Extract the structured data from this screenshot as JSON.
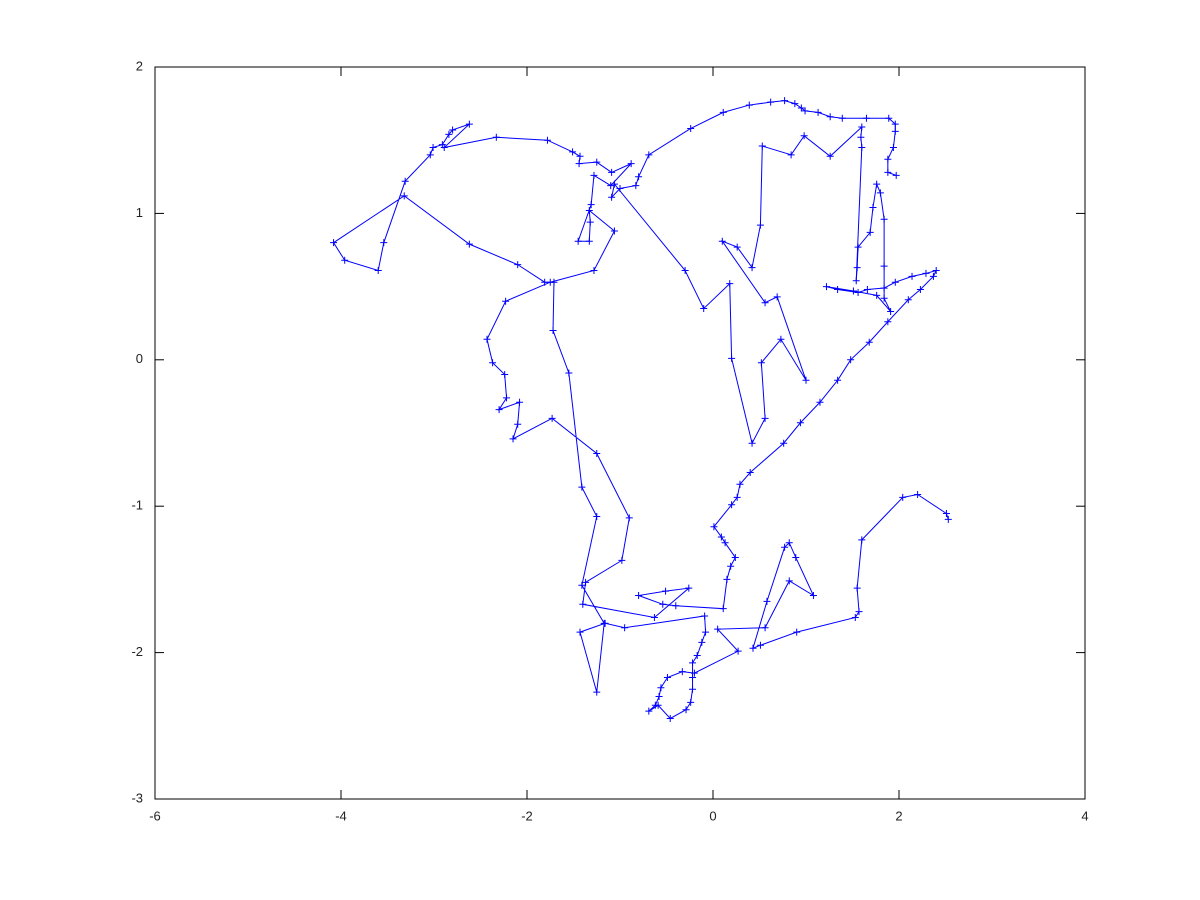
{
  "chart_data": {
    "type": "line",
    "marker": "+",
    "color": "#0000ff",
    "xlim": [
      -6,
      4
    ],
    "ylim": [
      -3,
      2
    ],
    "xticks": [
      -6,
      -4,
      -2,
      0,
      2,
      4
    ],
    "yticks": [
      -3,
      -2,
      -1,
      0,
      1,
      2
    ],
    "x": [
      2.53,
      2.51,
      2.2,
      2.04,
      1.6,
      1.55,
      1.57,
      1.53,
      0.9,
      0.51,
      0.43,
      0.58,
      0.77,
      0.82,
      0.89,
      1.08,
      0.82,
      0.56,
      0.05,
      0.27,
      -0.2,
      -0.33,
      -0.49,
      -0.56,
      -0.58,
      -0.62,
      -0.69,
      -0.59,
      -0.46,
      -0.29,
      -0.24,
      -0.22,
      -0.22,
      -0.22,
      -0.17,
      -0.12,
      -0.08,
      -0.09,
      -0.95,
      -1.16,
      -1.43,
      -1.25,
      -1.17,
      -1.41,
      -1.25,
      -1.41,
      -1.55,
      -1.72,
      -1.71,
      -1.81,
      -2.1,
      -2.62,
      -3.32,
      -4.08,
      -3.96,
      -3.6,
      -3.54,
      -3.31,
      -3.04,
      -3.01,
      -2.91,
      -2.84,
      -2.8,
      -2.62,
      -2.89,
      -2.33,
      -1.78,
      -1.51,
      -1.43,
      -1.44,
      -1.25,
      -1.09,
      -0.88,
      -1.1,
      -1.28,
      -1.31,
      -1.45,
      -1.33,
      -1.32,
      -1.33,
      -1.06,
      -1.28,
      -1.75,
      -2.23,
      -2.43,
      -2.37,
      -2.24,
      -2.22,
      -2.3,
      -2.08,
      -2.1,
      -2.15,
      -1.73,
      -1.25,
      -0.9,
      -0.98,
      -1.37,
      -1.4,
      -0.63,
      -0.26,
      -0.51,
      -0.8,
      -0.54,
      -0.4,
      0.11,
      0.15,
      0.19,
      0.24,
      0.13,
      0.09,
      0.01,
      0.2,
      0.26,
      0.29,
      0.4,
      0.76,
      0.94,
      1.15,
      1.34,
      1.48,
      1.68,
      1.88,
      2.1,
      2.23,
      2.37,
      2.4,
      2.29,
      2.14,
      1.96,
      1.84,
      1.66,
      1.56,
      1.34,
      1.22,
      1.51,
      1.76,
      1.91,
      1.84,
      1.84,
      1.84,
      1.8,
      1.76,
      1.72,
      1.69,
      1.56,
      1.55,
      1.54,
      1.6,
      1.59,
      1.6,
      1.26,
      0.98,
      0.84,
      0.53,
      0.51,
      0.42,
      0.26,
      0.1,
      0.56,
      0.69,
      1.0,
      0.73,
      0.52,
      0.56,
      0.42,
      0.2,
      0.18,
      -0.1,
      -0.3,
      -1.06,
      -1.09,
      -1.0,
      -0.83,
      -0.8,
      -0.69,
      -0.24,
      0.11,
      0.39,
      0.62,
      0.77,
      0.88,
      0.95,
      0.99,
      1.13,
      1.26,
      1.39,
      1.65,
      1.89,
      1.96,
      1.96,
      1.94,
      1.88,
      1.88,
      1.97
    ],
    "values": [
      -1.09,
      -1.05,
      -0.92,
      -0.94,
      -1.23,
      -1.56,
      -1.72,
      -1.76,
      -1.86,
      -1.95,
      -1.97,
      -1.65,
      -1.28,
      -1.25,
      -1.35,
      -1.61,
      -1.51,
      -1.83,
      -1.84,
      -1.99,
      -2.14,
      -2.13,
      -2.17,
      -2.24,
      -2.3,
      -2.36,
      -2.4,
      -2.36,
      -2.45,
      -2.39,
      -2.34,
      -2.25,
      -2.17,
      -2.07,
      -2.02,
      -1.93,
      -1.86,
      -1.75,
      -1.83,
      -1.8,
      -1.86,
      -2.27,
      -1.8,
      -1.54,
      -1.07,
      -0.87,
      -0.09,
      0.2,
      0.53,
      0.53,
      0.65,
      0.79,
      1.12,
      0.8,
      0.68,
      0.61,
      0.8,
      1.22,
      1.4,
      1.45,
      1.47,
      1.54,
      1.57,
      1.61,
      1.45,
      1.52,
      1.5,
      1.42,
      1.39,
      1.34,
      1.35,
      1.28,
      1.34,
      1.19,
      1.26,
      1.06,
      0.81,
      0.81,
      0.94,
      1.02,
      0.88,
      0.61,
      0.53,
      0.4,
      0.14,
      -0.02,
      -0.1,
      -0.26,
      -0.34,
      -0.29,
      -0.44,
      -0.54,
      -0.4,
      -0.64,
      -1.08,
      -1.37,
      -1.52,
      -1.67,
      -1.76,
      -1.56,
      -1.58,
      -1.61,
      -1.67,
      -1.68,
      -1.7,
      -1.5,
      -1.41,
      -1.35,
      -1.25,
      -1.21,
      -1.14,
      -0.99,
      -0.94,
      -0.85,
      -0.77,
      -0.57,
      -0.43,
      -0.29,
      -0.14,
      0.0,
      0.12,
      0.26,
      0.41,
      0.48,
      0.57,
      0.61,
      0.59,
      0.57,
      0.53,
      0.49,
      0.48,
      0.46,
      0.48,
      0.5,
      0.47,
      0.44,
      0.33,
      0.42,
      0.64,
      0.96,
      1.14,
      1.2,
      1.04,
      0.87,
      0.77,
      0.63,
      0.54,
      1.45,
      1.52,
      1.59,
      1.39,
      1.53,
      1.4,
      1.46,
      0.92,
      0.63,
      0.77,
      0.81,
      0.39,
      0.43,
      -0.14,
      0.14,
      -0.02,
      -0.4,
      -0.57,
      0.01,
      0.52,
      0.35,
      0.61,
      1.2,
      1.11,
      1.17,
      1.19,
      1.25,
      1.4,
      1.58,
      1.69,
      1.74,
      1.76,
      1.77,
      1.75,
      1.72,
      1.7,
      1.69,
      1.66,
      1.65,
      1.65,
      1.65,
      1.61,
      1.56,
      1.45,
      1.37,
      1.28,
      1.26
    ]
  }
}
